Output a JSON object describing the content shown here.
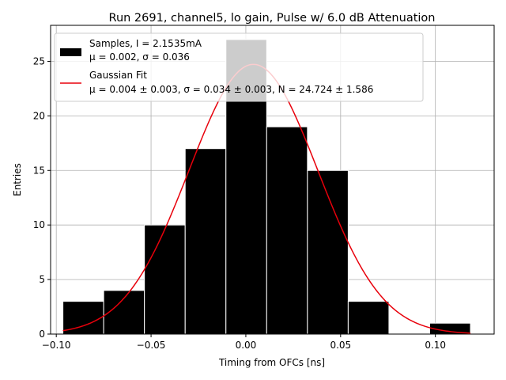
{
  "chart_data": {
    "type": "bar",
    "title": "Run 2691, channel5, lo gain, Pulse w/ 6.0 dB Attenuation",
    "xlabel": "Timing from OFCs [ns]",
    "ylabel": "Entries",
    "xlim": [
      -0.103,
      0.131
    ],
    "ylim": [
      0,
      28.3
    ],
    "xticks": [
      -0.1,
      -0.05,
      0.0,
      0.05,
      0.1
    ],
    "xtick_labels": [
      "−0.10",
      "−0.05",
      "0.00",
      "0.05",
      "0.10"
    ],
    "yticks": [
      0,
      5,
      10,
      15,
      20,
      25
    ],
    "ytick_labels": [
      "0",
      "5",
      "10",
      "15",
      "20",
      "25"
    ],
    "grid": true,
    "legend_position": "top-left",
    "histogram": {
      "name": "Samples, I = 2.1535mA",
      "stats_label": "μ = 0.002, σ = 0.036",
      "bin_edges": [
        -0.0965,
        -0.075,
        -0.0535,
        -0.032,
        -0.0105,
        0.011,
        0.0325,
        0.054,
        0.0755,
        0.097,
        0.1185
      ],
      "counts": [
        3,
        4,
        10,
        17,
        27,
        19,
        15,
        3,
        0,
        1
      ],
      "color": "#000000",
      "edge_color": "#ffffff"
    },
    "fit": {
      "name": "Gaussian Fit",
      "params_label": "μ = 0.004 ± 0.003, σ = 0.034 ± 0.003, N = 24.724 ± 1.586",
      "mu": 0.004,
      "sigma": 0.034,
      "N": 24.724,
      "x_range": [
        -0.0965,
        0.1185
      ],
      "color": "#e8000b"
    }
  }
}
